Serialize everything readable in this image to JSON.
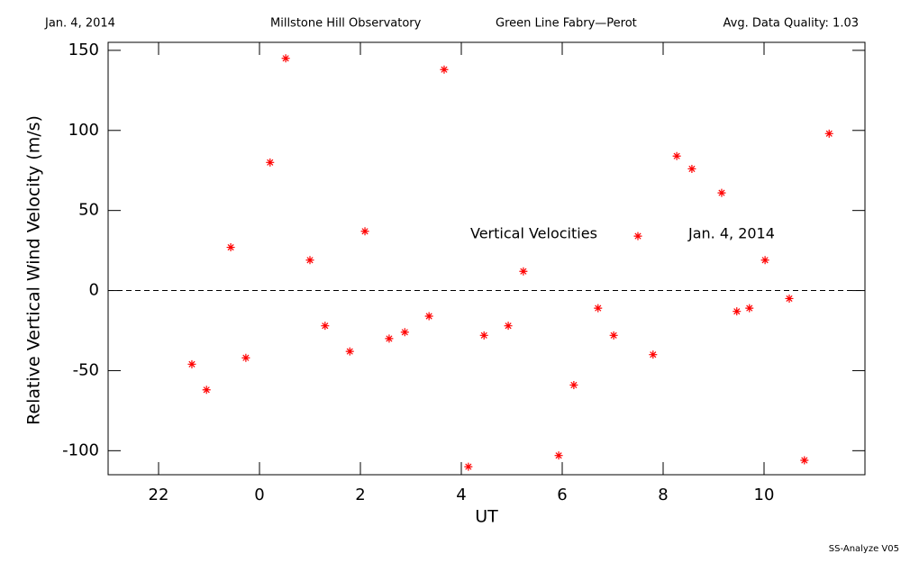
{
  "chart_data": {
    "type": "scatter",
    "header": [
      "Jan. 4, 2014",
      "Millstone Hill Observatory",
      "Green Line Fabry—Perot",
      "Avg. Data Quality: 1.03"
    ],
    "x_label": "UT",
    "y_label": "Relative Vertical Wind Velocity (m/s)",
    "annotations": [
      "Vertical Velocities",
      "Jan. 4, 2014"
    ],
    "footer": "SS-Analyze V05",
    "color": "#ff0000",
    "reference_line": 0,
    "xlim": [
      -3,
      12
    ],
    "ylim": [
      -115,
      155
    ],
    "xticks": [
      {
        "value": -2,
        "label": "22"
      },
      0,
      2,
      4,
      6,
      8,
      10
    ],
    "yticks": [
      -100,
      -50,
      0,
      50,
      100,
      150
    ],
    "x": [
      -1.34,
      -1.05,
      -0.57,
      -0.27,
      0.21,
      0.52,
      1.0,
      1.3,
      1.79,
      2.09,
      2.57,
      2.88,
      3.36,
      3.66,
      4.14,
      4.45,
      4.93,
      5.23,
      5.93,
      6.23,
      6.71,
      7.02,
      7.5,
      7.8,
      8.27,
      8.57,
      9.16,
      9.46,
      9.71,
      10.02,
      10.5,
      10.8,
      11.29
    ],
    "values": [
      -46,
      -62,
      27,
      -42,
      80,
      145,
      19,
      -22,
      -38,
      37,
      -30,
      -26,
      -16,
      138,
      -110,
      -28,
      -22,
      12,
      -103,
      -59,
      -11,
      -28,
      34,
      -40,
      84,
      76,
      61,
      -13,
      -11,
      19,
      -5,
      -106,
      98
    ]
  }
}
